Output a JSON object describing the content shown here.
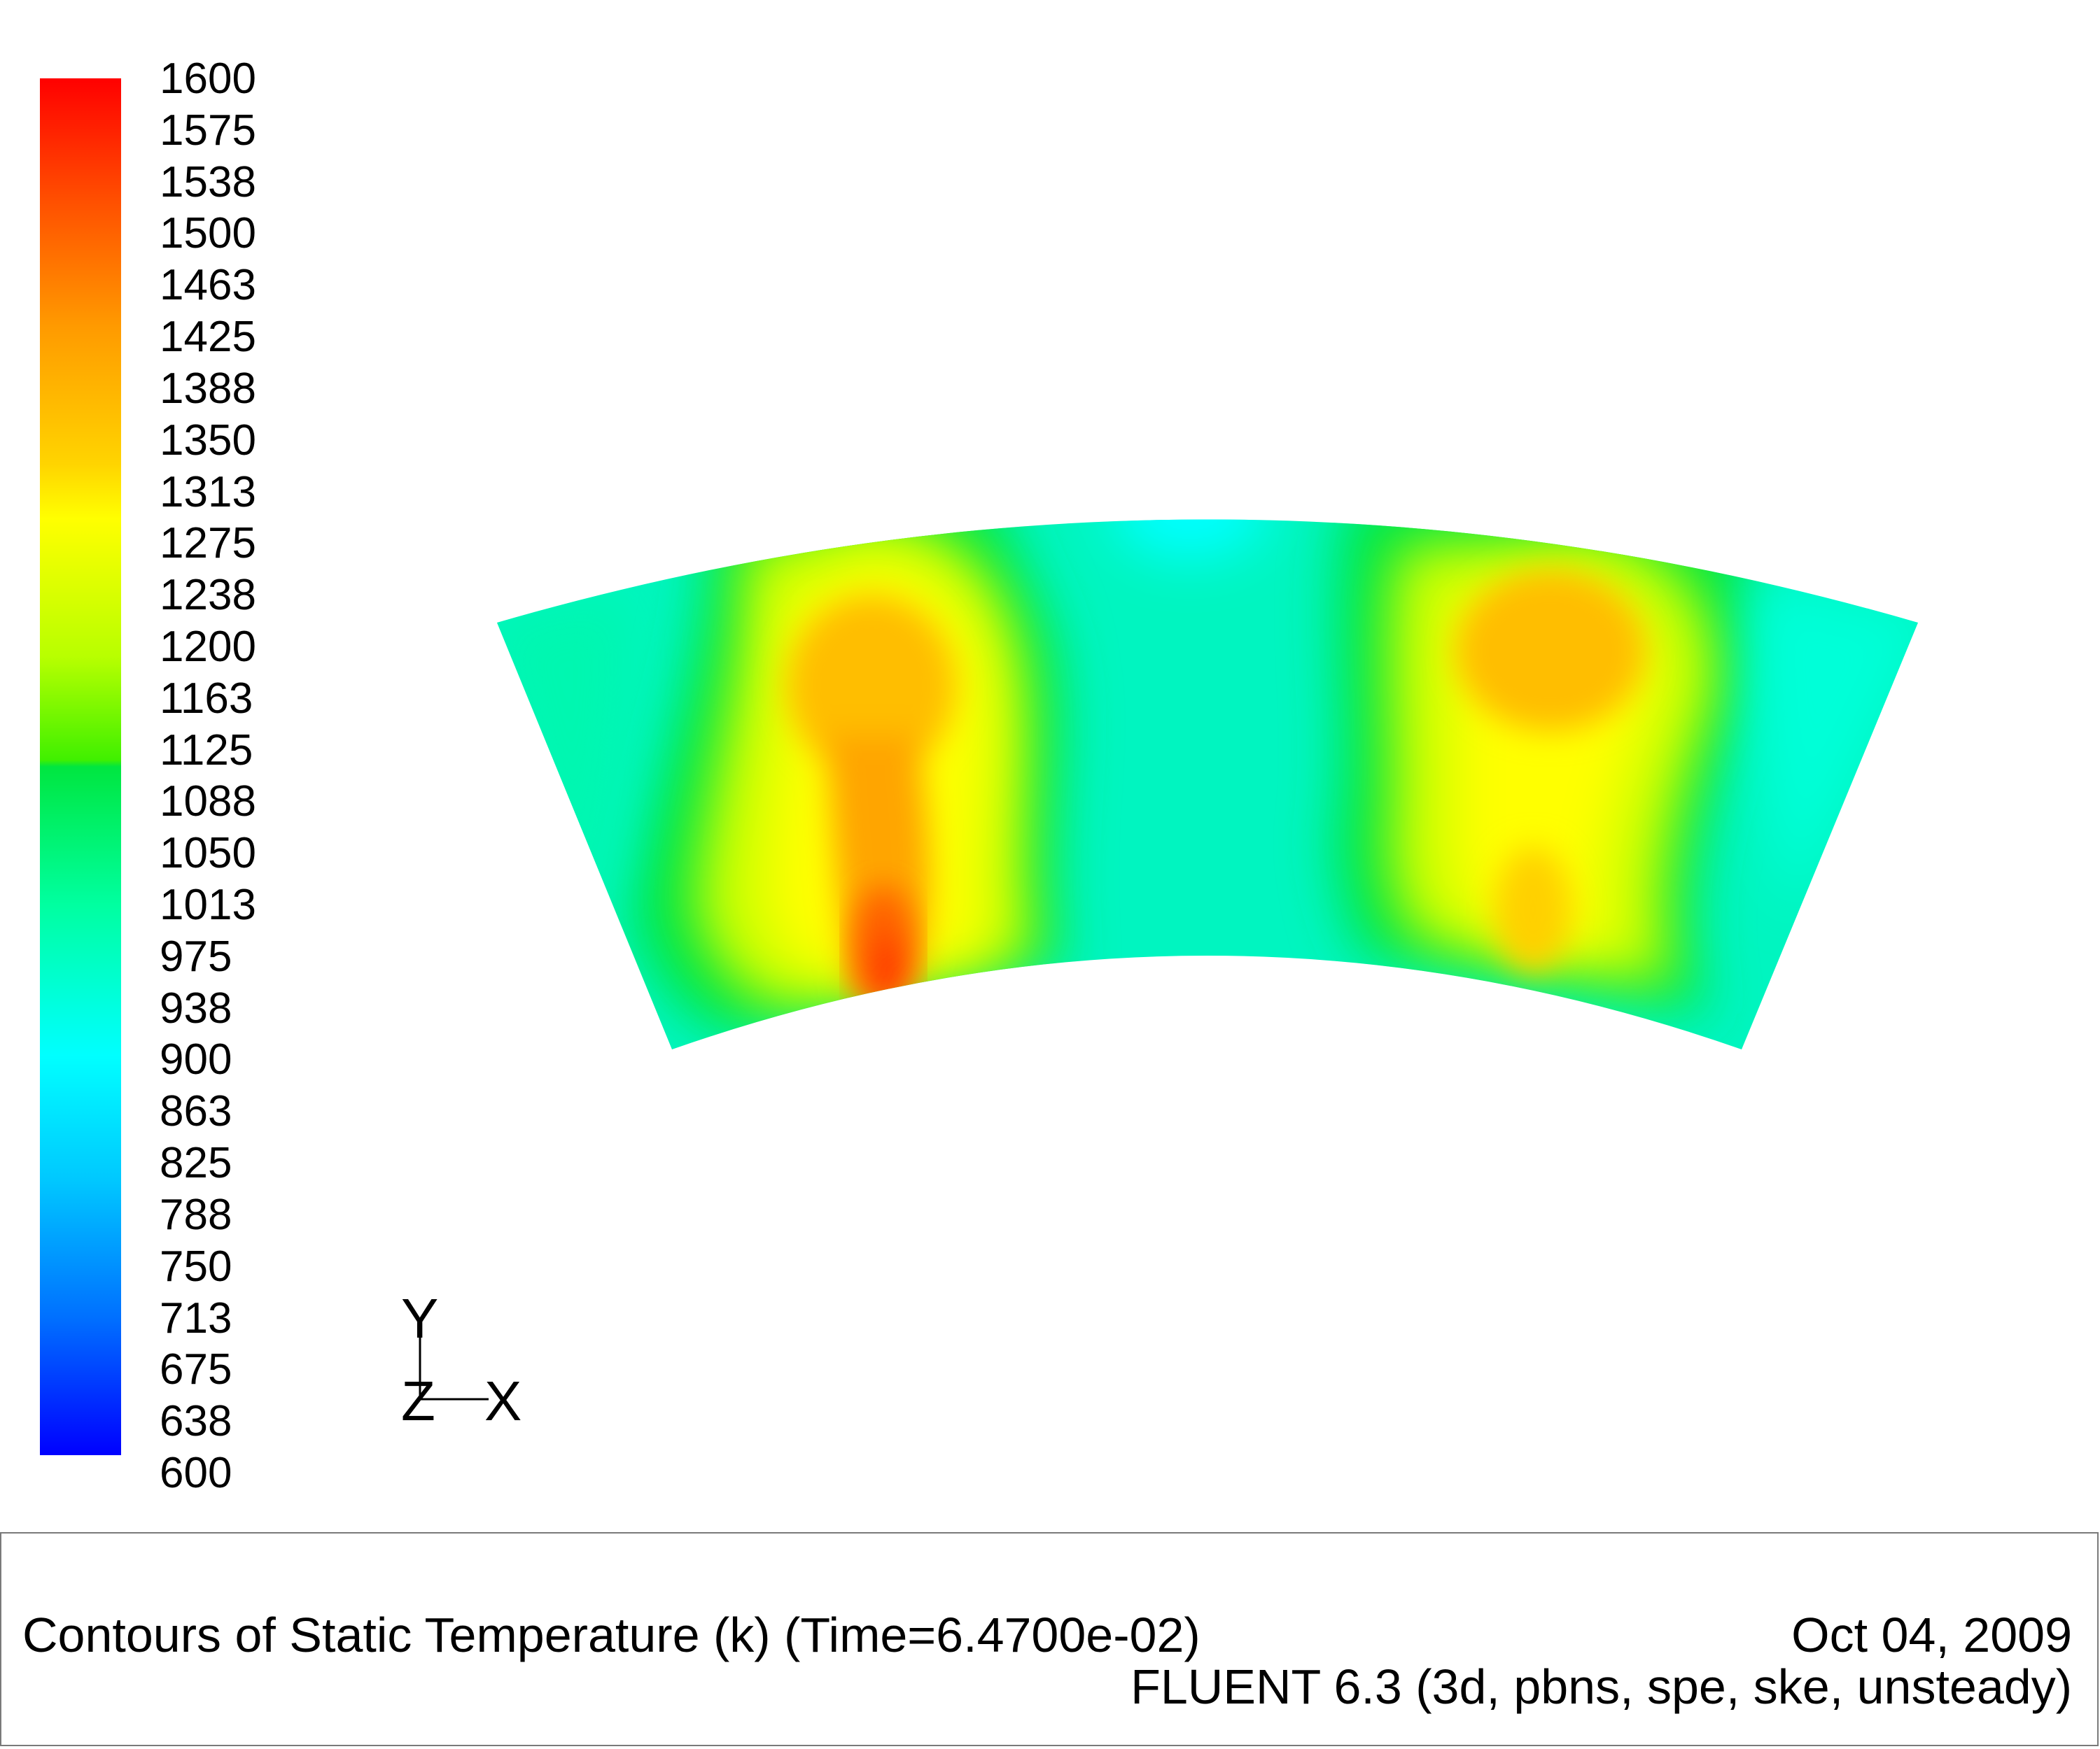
{
  "colorbar": {
    "labels": [
      "1600",
      "1575",
      "1538",
      "1500",
      "1463",
      "1425",
      "1388",
      "1350",
      "1313",
      "1275",
      "1238",
      "1200",
      "1163",
      "1125",
      "1088",
      "1050",
      "1013",
      "975",
      "938",
      "900",
      "863",
      "825",
      "788",
      "750",
      "713",
      "675",
      "638",
      "600"
    ],
    "min": 600,
    "max": 1600
  },
  "axes": {
    "y_label": "Y",
    "z_label": "Z",
    "x_label": "X"
  },
  "footer": {
    "title": "Contours of Static Temperature (k)  (Time=6.4700e-02)",
    "date": "Oct 04, 2009",
    "solver": "FLUENT 6.3 (3d, pbns, spe, ske, unsteady)"
  },
  "colors": {
    "background": "#ffffff",
    "max_red": "#ff0000",
    "orange": "#ff9900",
    "yellow": "#ffff00",
    "green": "#00e640",
    "cyan": "#00ffff",
    "min_blue": "#0000ff"
  }
}
